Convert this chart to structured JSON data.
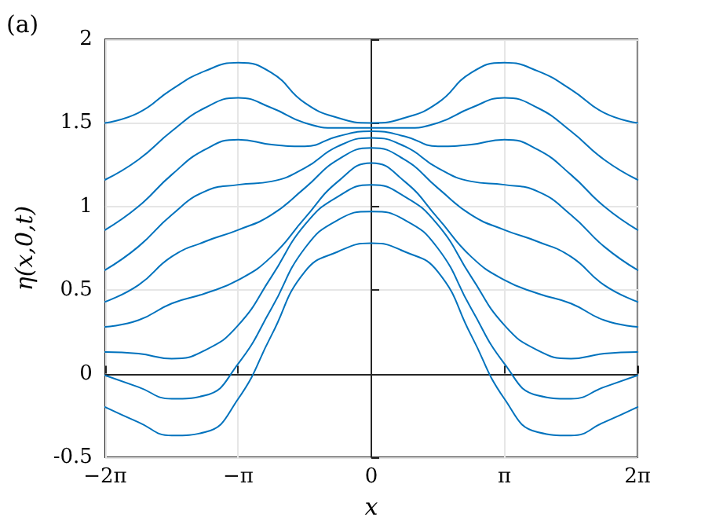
{
  "chart_data": {
    "type": "line",
    "xlabel": "x",
    "ylabel": "η(x,0,t)",
    "annotations": [
      "(a)"
    ],
    "x": [
      -6.2832,
      -5.4978,
      -4.7124,
      -3.927,
      -3.1416,
      -2.3562,
      -1.5708,
      -0.7854,
      0,
      0.7854,
      1.5708,
      2.3562,
      3.1416,
      3.927,
      4.7124,
      5.4978,
      6.2832
    ],
    "xlim": [
      -6.2832,
      6.2832
    ],
    "xticks": [
      {
        "value": -6.2832,
        "label": "−2π"
      },
      {
        "value": -3.1416,
        "label": "−π"
      },
      {
        "value": 0,
        "label": "0"
      },
      {
        "value": 3.1416,
        "label": "π"
      },
      {
        "value": 6.2832,
        "label": "2π"
      }
    ],
    "ylim": [
      -0.5,
      2
    ],
    "yticks": [
      -0.5,
      0,
      0.5,
      1,
      1.5,
      2
    ],
    "grid": true,
    "line_style": "solid",
    "marker": "none",
    "series": [
      {
        "color": "#0072bd",
        "values": [
          1.5,
          1.56,
          1.7,
          1.81,
          1.86,
          1.8,
          1.62,
          1.53,
          1.5,
          1.53,
          1.62,
          1.8,
          1.86,
          1.81,
          1.7,
          1.56,
          1.5
        ]
      },
      {
        "color": "#0072bd",
        "values": [
          1.16,
          1.28,
          1.45,
          1.59,
          1.65,
          1.59,
          1.5,
          1.47,
          1.47,
          1.47,
          1.5,
          1.59,
          1.65,
          1.59,
          1.45,
          1.28,
          1.16
        ]
      },
      {
        "color": "#0072bd",
        "values": [
          0.86,
          1.0,
          1.19,
          1.34,
          1.4,
          1.37,
          1.36,
          1.42,
          1.45,
          1.42,
          1.36,
          1.37,
          1.4,
          1.34,
          1.19,
          1.0,
          0.86
        ]
      },
      {
        "color": "#0072bd",
        "values": [
          0.62,
          0.76,
          0.95,
          1.09,
          1.13,
          1.15,
          1.23,
          1.36,
          1.41,
          1.36,
          1.23,
          1.15,
          1.13,
          1.09,
          0.95,
          0.76,
          0.62
        ]
      },
      {
        "color": "#0072bd",
        "values": [
          0.43,
          0.53,
          0.7,
          0.79,
          0.86,
          0.95,
          1.11,
          1.28,
          1.35,
          1.28,
          1.11,
          0.95,
          0.86,
          0.79,
          0.7,
          0.53,
          0.43
        ]
      },
      {
        "color": "#0072bd",
        "values": [
          0.28,
          0.32,
          0.42,
          0.48,
          0.56,
          0.7,
          0.93,
          1.15,
          1.26,
          1.15,
          0.93,
          0.7,
          0.56,
          0.48,
          0.42,
          0.32,
          0.28
        ]
      },
      {
        "color": "#0072bd",
        "values": [
          0.13,
          0.12,
          0.09,
          0.14,
          0.29,
          0.58,
          0.89,
          1.06,
          1.13,
          1.06,
          0.89,
          0.58,
          0.29,
          0.14,
          0.09,
          0.12,
          0.13
        ]
      },
      {
        "color": "#0072bd",
        "values": [
          -0.01,
          -0.08,
          -0.15,
          -0.13,
          0.06,
          0.39,
          0.75,
          0.92,
          0.97,
          0.92,
          0.75,
          0.39,
          0.06,
          -0.13,
          -0.15,
          -0.08,
          -0.01
        ]
      },
      {
        "color": "#0072bd",
        "values": [
          -0.2,
          -0.29,
          -0.37,
          -0.35,
          -0.15,
          0.23,
          0.61,
          0.73,
          0.78,
          0.73,
          0.61,
          0.23,
          -0.15,
          -0.35,
          -0.37,
          -0.29,
          -0.2
        ]
      }
    ]
  }
}
